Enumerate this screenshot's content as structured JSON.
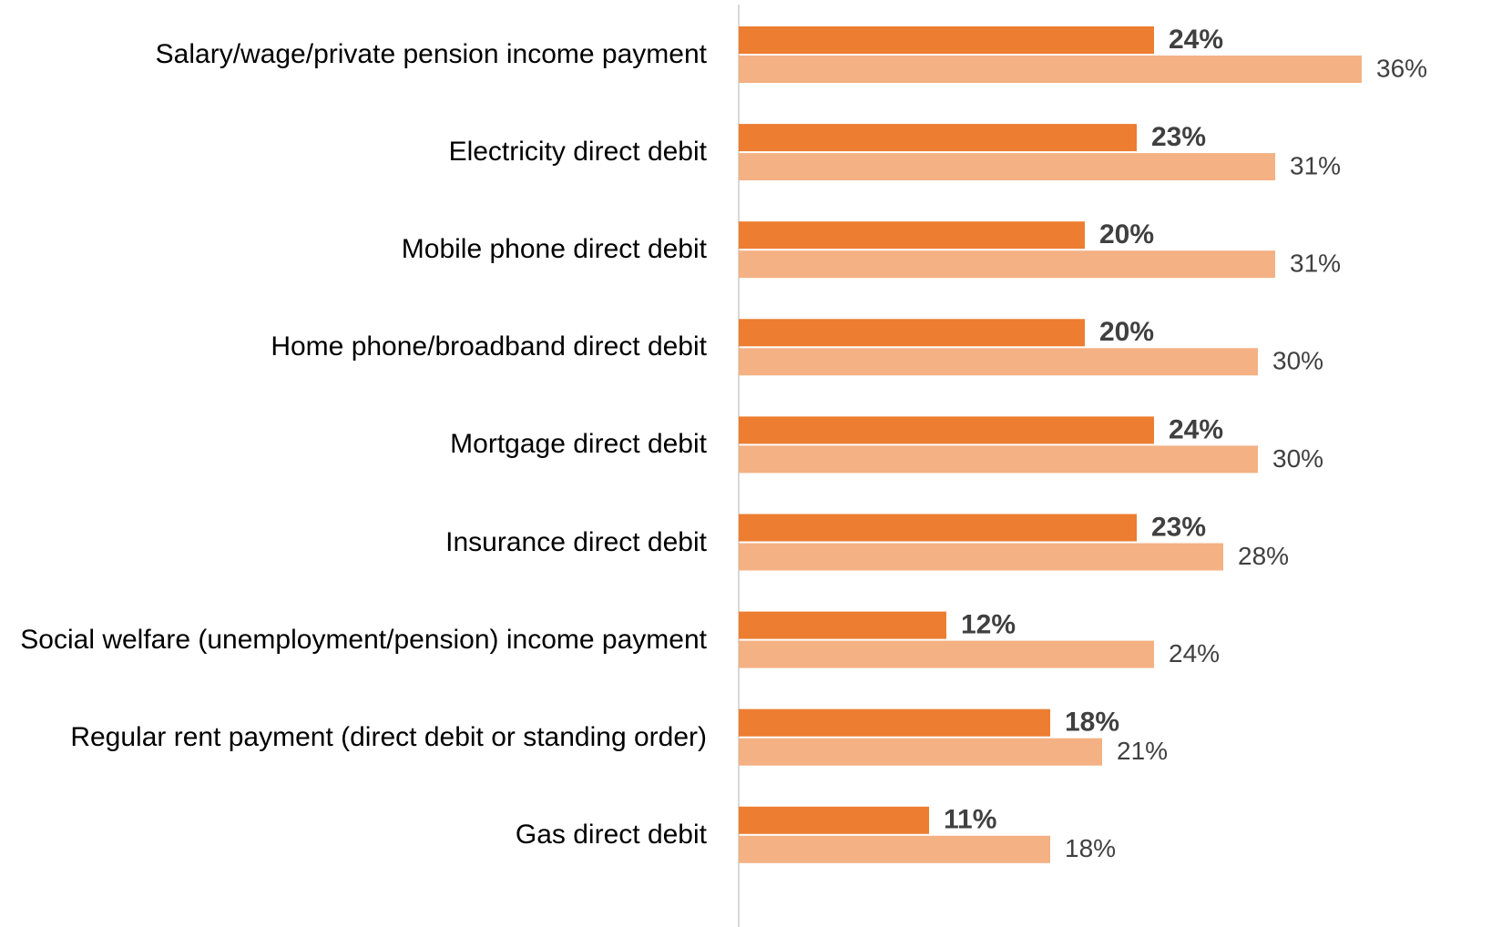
{
  "chart_data": {
    "type": "bar",
    "orientation": "horizontal",
    "categories": [
      "Salary/wage/private pension income payment",
      "Electricity direct debit",
      "Mobile phone direct debit",
      "Home phone/broadband direct debit",
      "Mortgage direct debit",
      "Insurance direct debit",
      "Social welfare (unemployment/pension) income payment",
      "Regular rent payment (direct debit or standing order)",
      "Gas direct debit"
    ],
    "series": [
      {
        "color": "#ED7D31",
        "values": [
          24,
          23,
          20,
          20,
          24,
          23,
          12,
          18,
          11
        ],
        "value_labels": [
          "24%",
          "23%",
          "20%",
          "20%",
          "24%",
          "23%",
          "12%",
          "18%",
          "11%"
        ]
      },
      {
        "color": "#F4B183",
        "values": [
          36,
          31,
          31,
          30,
          30,
          28,
          24,
          21,
          18
        ],
        "value_labels": [
          "36%",
          "31%",
          "31%",
          "30%",
          "30%",
          "28%",
          "24%",
          "21%",
          "18%"
        ]
      }
    ],
    "xlim": [
      0,
      40
    ]
  }
}
